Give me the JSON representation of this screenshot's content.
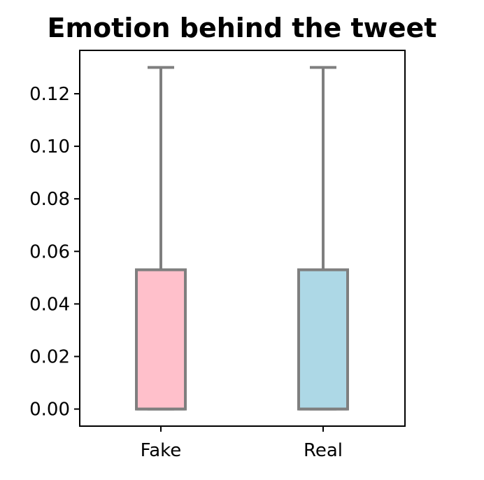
{
  "chart_data": {
    "type": "box",
    "title": "Emotion behind the tweet",
    "xlabel": "",
    "ylabel": "",
    "categories": [
      "Fake",
      "Real"
    ],
    "boxes": [
      {
        "name": "Fake",
        "min": 0.0,
        "q1": 0.0,
        "median": 0.0,
        "q3": 0.053,
        "max": 0.13,
        "fill": "#ffc0cb"
      },
      {
        "name": "Real",
        "min": 0.0,
        "q1": 0.0,
        "median": 0.0,
        "q3": 0.053,
        "max": 0.13,
        "fill": "#add8e6"
      }
    ],
    "ylim": [
      -0.0065,
      0.1365
    ],
    "y_ticks": [
      "0.00",
      "0.02",
      "0.04",
      "0.06",
      "0.08",
      "0.10",
      "0.12"
    ],
    "grid": false,
    "legend": "none",
    "colors": {
      "edge": "#7f7f7f",
      "axis": "#000000",
      "text": "#000000"
    }
  }
}
